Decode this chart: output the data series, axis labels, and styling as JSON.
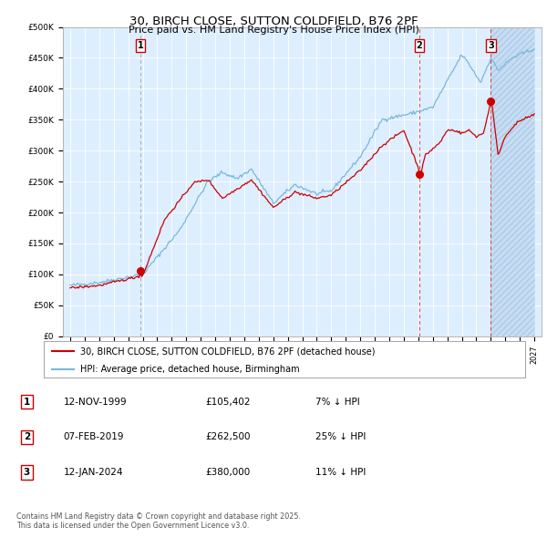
{
  "title_line1": "30, BIRCH CLOSE, SUTTON COLDFIELD, B76 2PF",
  "title_line2": "Price paid vs. HM Land Registry's House Price Index (HPI)",
  "legend_label1": "30, BIRCH CLOSE, SUTTON COLDFIELD, B76 2PF (detached house)",
  "legend_label2": "HPI: Average price, detached house, Birmingham",
  "sale1_label": "12-NOV-1999",
  "sale1_price": 105402,
  "sale1_note": "7% ↓ HPI",
  "sale2_label": "07-FEB-2019",
  "sale2_price": 262500,
  "sale2_note": "25% ↓ HPI",
  "sale3_label": "12-JAN-2024",
  "sale3_price": 380000,
  "sale3_note": "11% ↓ HPI",
  "ylim": [
    0,
    500000
  ],
  "hpi_color": "#7ab8d9",
  "price_color": "#cc0000",
  "bg_color": "#ddeeff",
  "hatch_bg_color": "#c8ddf0",
  "grid_color": "#ffffff",
  "footer": "Contains HM Land Registry data © Crown copyright and database right 2025.\nThis data is licensed under the Open Government Licence v3.0."
}
